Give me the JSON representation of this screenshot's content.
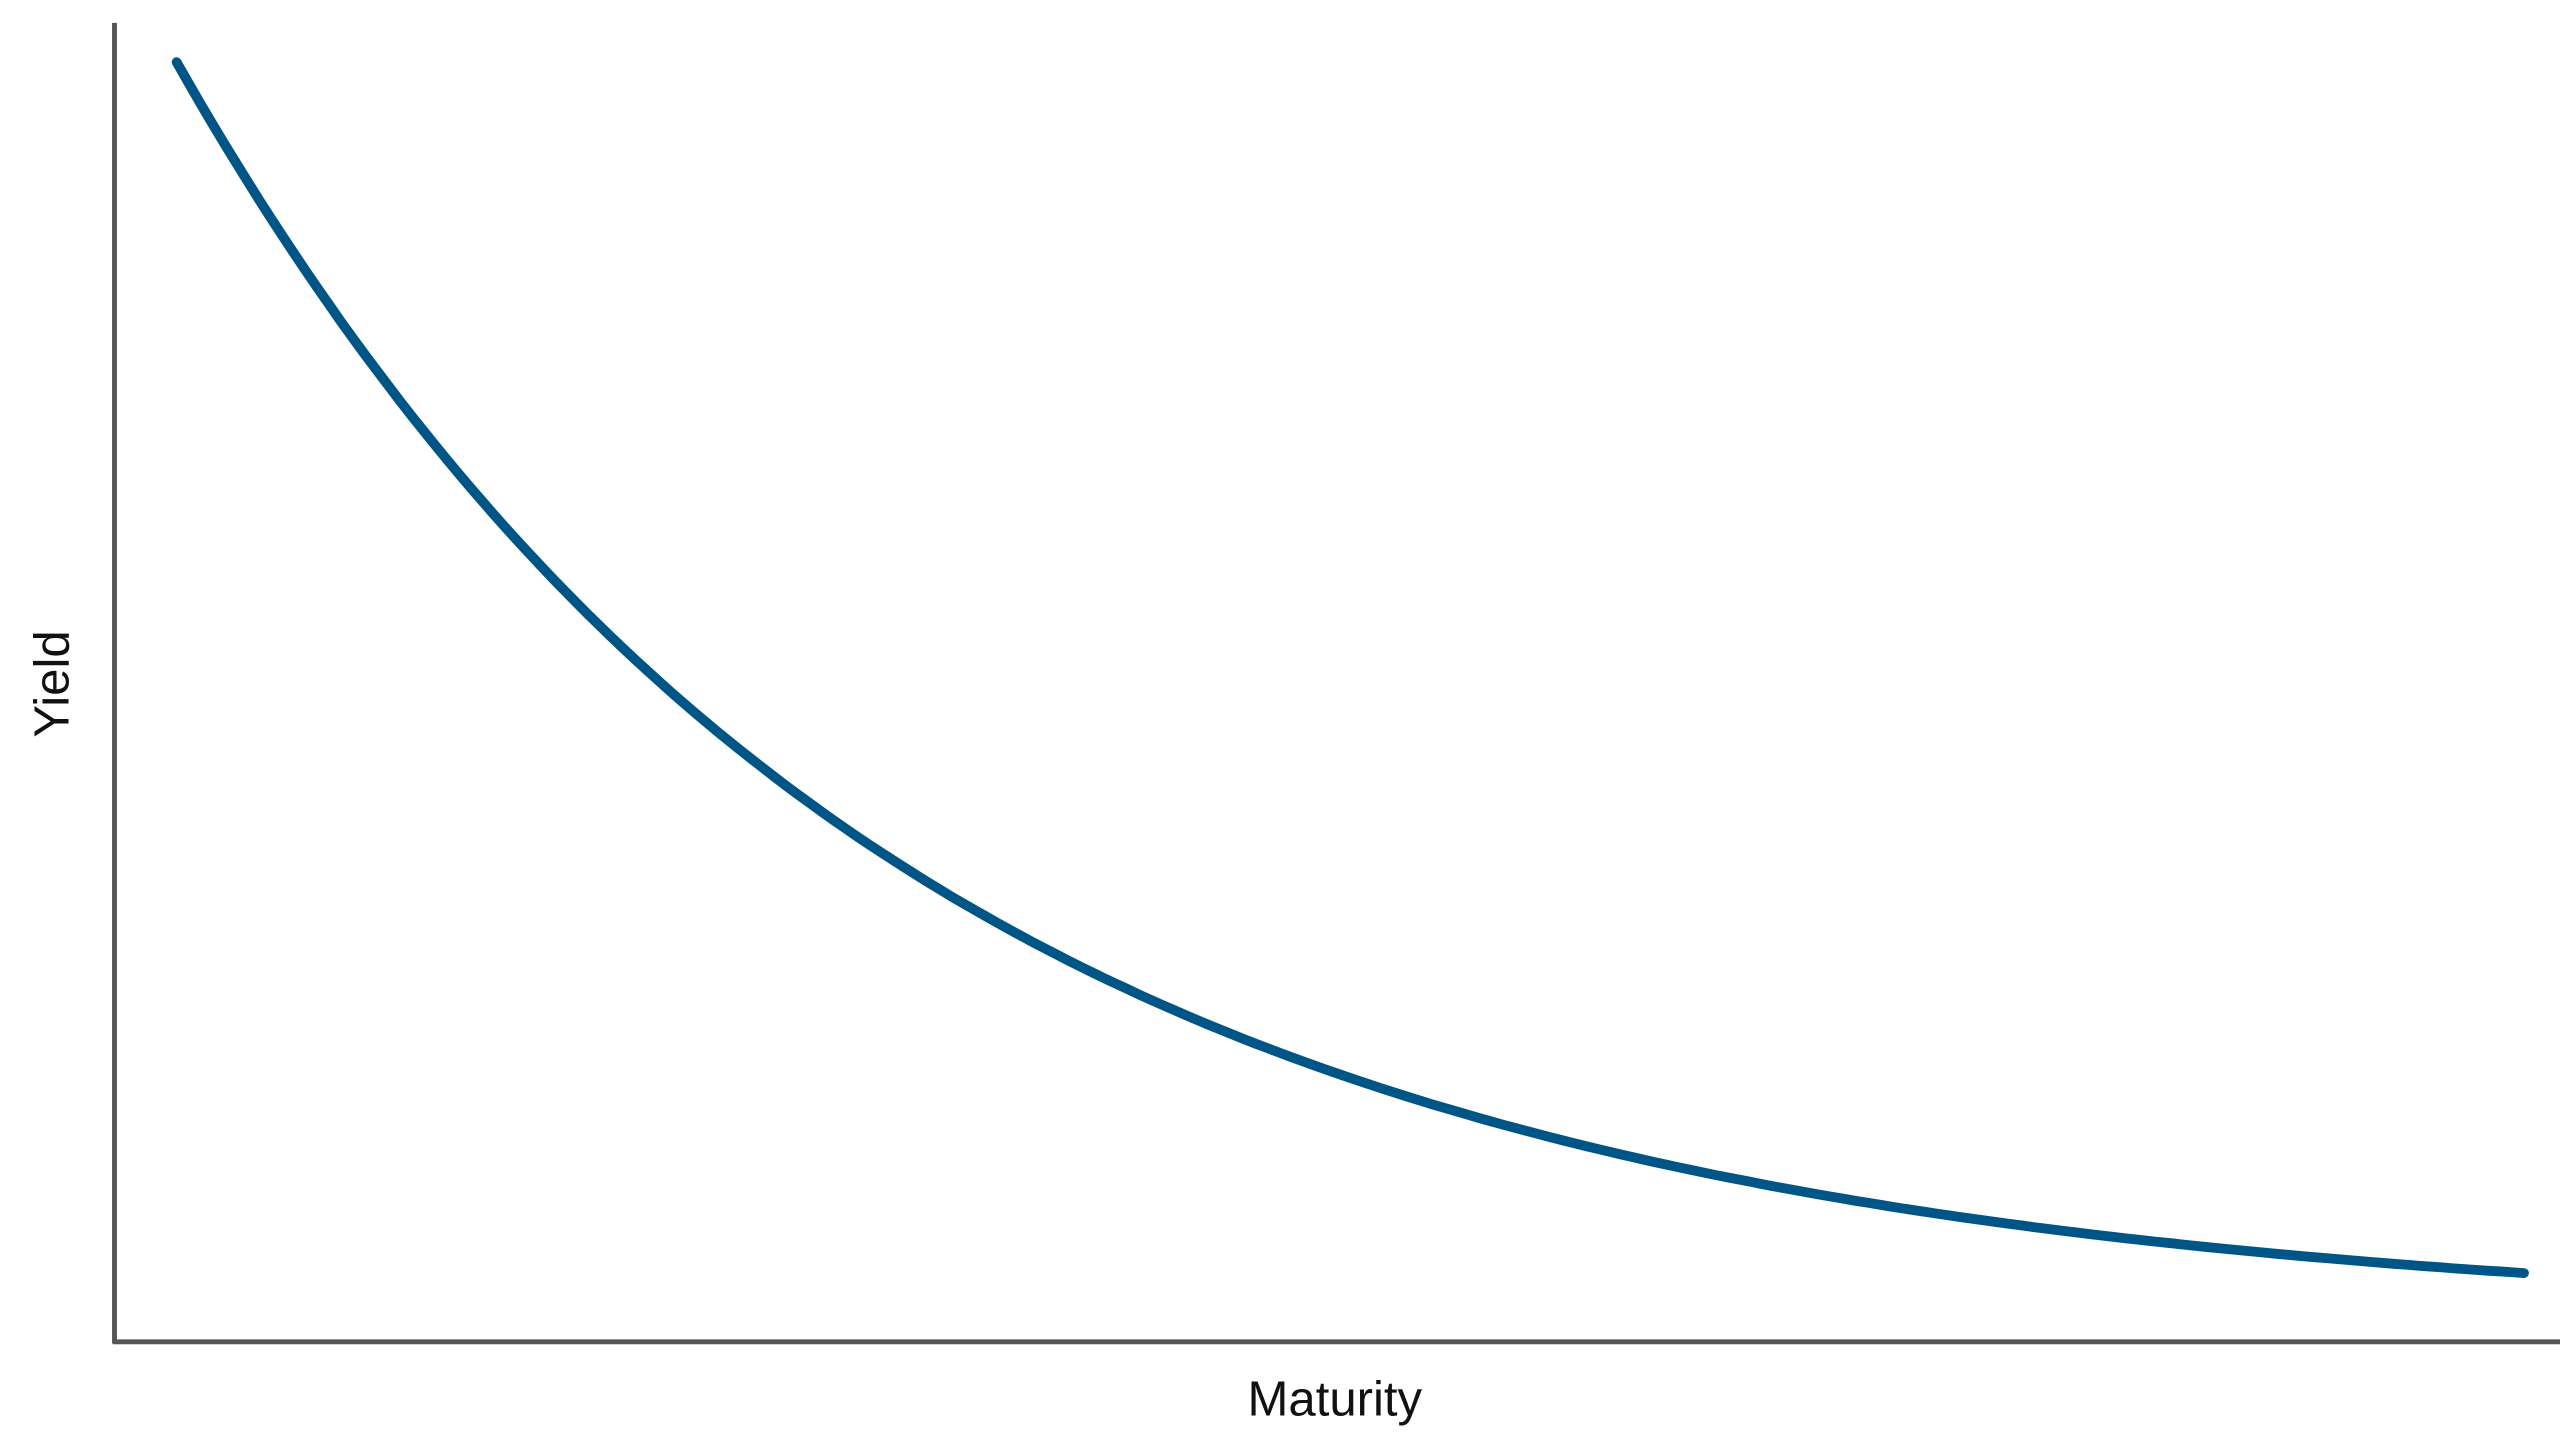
{
  "chart_data": {
    "type": "line",
    "title": "",
    "xlabel": "Maturity",
    "ylabel": "Yield",
    "ticks_shown": false,
    "grid": false,
    "xlim": [
      0,
      1.026
    ],
    "ylim": [
      0,
      1.088
    ],
    "series": [
      {
        "color": "#005587",
        "x": [
          0,
          0.1,
          0.2,
          0.3,
          0.4,
          0.5,
          0.6,
          0.7,
          0.8,
          0.9,
          1.0
        ],
        "y": [
          1.0,
          0.73,
          0.53,
          0.38,
          0.27,
          0.18,
          0.12,
          0.07,
          0.04,
          0.015,
          0.0
        ]
      }
    ]
  },
  "colors": {
    "axis": "#555555",
    "line": "#005587"
  }
}
